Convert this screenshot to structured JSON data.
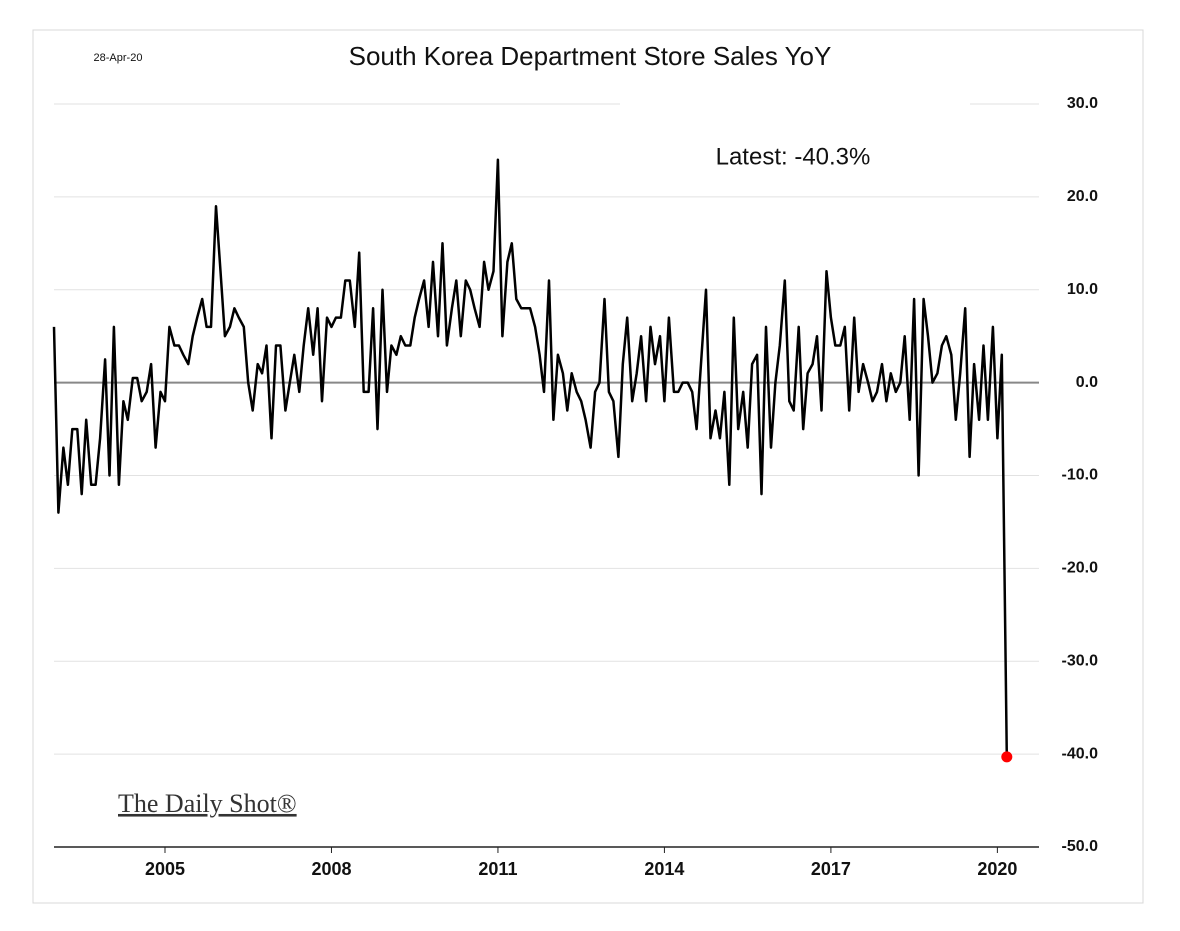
{
  "chart_data": {
    "type": "line",
    "title": "South Korea Department Store Sales YoY",
    "date": "28-Apr-20",
    "annotation": "Latest:  -40.3%",
    "watermark": "The Daily Shot®",
    "color": "#000000",
    "last_point_color": "#ff0000",
    "grid": true,
    "xlim": [
      2003,
      2020.75
    ],
    "xticks": [
      2005,
      2008,
      2011,
      2014,
      2017,
      2020
    ],
    "ylim": [
      -50,
      30
    ],
    "yticks": [
      {
        "value": 30,
        "label": "30.0"
      },
      {
        "value": 20,
        "label": "20.0"
      },
      {
        "value": 10,
        "label": "10.0"
      },
      {
        "value": 0,
        "label": "0.0"
      },
      {
        "value": -10,
        "label": "-10.0"
      },
      {
        "value": -20,
        "label": "-20.0"
      },
      {
        "value": -30,
        "label": "-30.0"
      },
      {
        "value": -40,
        "label": "-40.0"
      },
      {
        "value": -50,
        "label": "-50.0"
      }
    ],
    "x": [
      2003,
      2003.08,
      2003.17,
      2003.25,
      2003.33,
      2003.42,
      2003.5,
      2003.58,
      2003.67,
      2003.75,
      2003.83,
      2003.92,
      2004,
      2004.08,
      2004.17,
      2004.25,
      2004.33,
      2004.42,
      2004.5,
      2004.58,
      2004.67,
      2004.75,
      2004.83,
      2004.92,
      2005,
      2005.08,
      2005.17,
      2005.25,
      2005.33,
      2005.42,
      2005.5,
      2005.58,
      2005.67,
      2005.75,
      2005.83,
      2005.92,
      2006,
      2006.08,
      2006.17,
      2006.25,
      2006.33,
      2006.42,
      2006.5,
      2006.58,
      2006.67,
      2006.75,
      2006.83,
      2006.92,
      2007,
      2007.08,
      2007.17,
      2007.25,
      2007.33,
      2007.42,
      2007.5,
      2007.58,
      2007.67,
      2007.75,
      2007.83,
      2007.92,
      2008,
      2008.08,
      2008.17,
      2008.25,
      2008.33,
      2008.42,
      2008.5,
      2008.58,
      2008.67,
      2008.75,
      2008.83,
      2008.92,
      2009,
      2009.08,
      2009.17,
      2009.25,
      2009.33,
      2009.42,
      2009.5,
      2009.58,
      2009.67,
      2009.75,
      2009.83,
      2009.92,
      2010,
      2010.08,
      2010.17,
      2010.25,
      2010.33,
      2010.42,
      2010.5,
      2010.58,
      2010.67,
      2010.75,
      2010.83,
      2010.92,
      2011,
      2011.08,
      2011.17,
      2011.25,
      2011.33,
      2011.42,
      2011.5,
      2011.58,
      2011.67,
      2011.75,
      2011.83,
      2011.92,
      2012,
      2012.08,
      2012.17,
      2012.25,
      2012.33,
      2012.42,
      2012.5,
      2012.58,
      2012.67,
      2012.75,
      2012.83,
      2012.92,
      2013,
      2013.08,
      2013.17,
      2013.25,
      2013.33,
      2013.42,
      2013.5,
      2013.58,
      2013.67,
      2013.75,
      2013.83,
      2013.92,
      2014,
      2014.08,
      2014.17,
      2014.25,
      2014.33,
      2014.42,
      2014.5,
      2014.58,
      2014.67,
      2014.75,
      2014.83,
      2014.92,
      2015,
      2015.08,
      2015.17,
      2015.25,
      2015.33,
      2015.42,
      2015.5,
      2015.58,
      2015.67,
      2015.75,
      2015.83,
      2015.92,
      2016,
      2016.08,
      2016.17,
      2016.25,
      2016.33,
      2016.42,
      2016.5,
      2016.58,
      2016.67,
      2016.75,
      2016.83,
      2016.92,
      2017,
      2017.08,
      2017.17,
      2017.25,
      2017.33,
      2017.42,
      2017.5,
      2017.58,
      2017.67,
      2017.75,
      2017.83,
      2017.92,
      2018,
      2018.08,
      2018.17,
      2018.25,
      2018.33,
      2018.42,
      2018.5,
      2018.58,
      2018.67,
      2018.75,
      2018.83,
      2018.92,
      2019,
      2019.08,
      2019.17,
      2019.25,
      2019.33,
      2019.42,
      2019.5,
      2019.58,
      2019.67,
      2019.75,
      2019.83,
      2019.92,
      2020,
      2020.08,
      2020.17
    ],
    "values": [
      6,
      -14,
      -7,
      -11,
      -5,
      -5,
      -12,
      -4,
      -11,
      -11,
      -6,
      2.5,
      -10,
      6,
      -11,
      -2,
      -4,
      0.5,
      0.5,
      -2,
      -1,
      2,
      -7,
      -1,
      -2,
      6,
      4,
      4,
      3,
      2,
      5,
      7,
      9,
      6,
      6,
      19,
      12,
      5,
      6,
      8,
      7,
      6,
      0,
      -3,
      2,
      1,
      4,
      -6,
      4,
      4,
      -3,
      0,
      3,
      -1,
      4,
      8,
      3,
      8,
      -2,
      7,
      6,
      7,
      7,
      11,
      11,
      6,
      14,
      -1,
      -1,
      8,
      -5,
      10,
      -1,
      4,
      3,
      5,
      4,
      4,
      7,
      9,
      11,
      6,
      13,
      5,
      15,
      4,
      8,
      11,
      5,
      11,
      10,
      8,
      6,
      13,
      10,
      12,
      24,
      5,
      13,
      15,
      9,
      8,
      8,
      8,
      6,
      3,
      -1,
      11,
      -4,
      3,
      1,
      -3,
      1,
      -1,
      -2,
      -4,
      -7,
      -1,
      0,
      9,
      -1,
      -2,
      -8,
      2,
      7,
      -2,
      1,
      5,
      -2,
      6,
      2,
      5,
      -2,
      7,
      -1,
      -1,
      0,
      0,
      -1,
      -5,
      3,
      10,
      -6,
      -3,
      -6,
      -1,
      -11,
      7,
      -5,
      -1,
      -7,
      2,
      3,
      -12,
      6,
      -7,
      0,
      4,
      11,
      -2,
      -3,
      6,
      -5,
      1,
      2,
      5,
      -3,
      12,
      7,
      4,
      4,
      6,
      -3,
      7,
      -1,
      2,
      0,
      -2,
      -1,
      2,
      -2,
      1,
      -1,
      0,
      5,
      -4,
      9,
      -10,
      9,
      5,
      0,
      1,
      4,
      5,
      3,
      -4,
      1,
      8,
      -8,
      2,
      -4,
      4,
      -4,
      6,
      -6,
      3,
      -40.3
    ]
  }
}
